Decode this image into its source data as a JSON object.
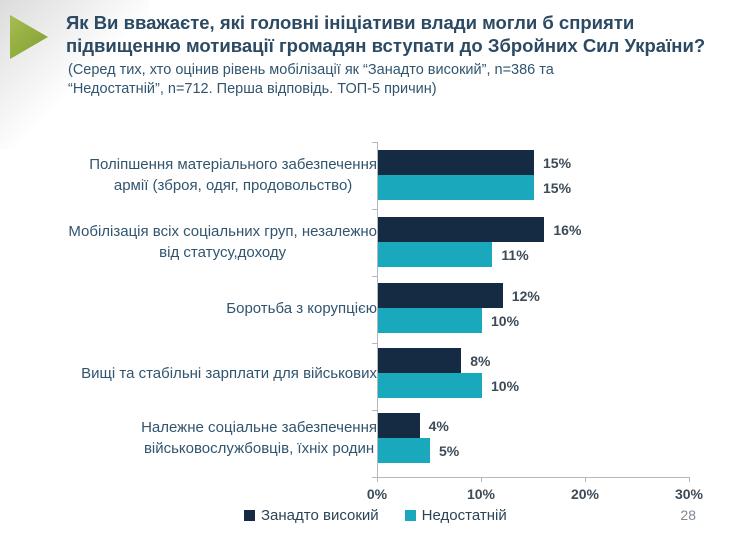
{
  "slide": {
    "page_number": "28"
  },
  "chart_data": {
    "type": "bar",
    "orientation": "horizontal",
    "title": "Як Ви вважаєте, які головні ініціативи влади могли б сприяти підвищенню мотивації громадян вступати до Збройних Сил України?",
    "subtitle": "(Серед тих, хто оцінив рівень мобілізації як “Занадто високий”, n=386 та “Недостатній”, n=712. Перша відповідь. ТОП-5 причин)",
    "xlabel": "",
    "ylabel": "",
    "xlim": [
      0,
      30
    ],
    "x_ticks": [
      "0%",
      "10%",
      "20%",
      "30%"
    ],
    "grid": false,
    "legend_position": "bottom",
    "categories": [
      "Поліпшення матеріального забезпечення армії (зброя, одяг, продовольство)",
      "Мобілізація всіх соціальних груп, незалежно від статусу,доходу",
      "Боротьба з корупцією",
      "Вищі та стабільні зарплати для військових",
      "Належне соціальне забезпечення військовослужбовців, їхніх родин"
    ],
    "category_lines": [
      [
        "Поліпшення матеріального забезпечення",
        "армії (зброя, одяг, продовольство)"
      ],
      [
        "Мобілізація всіх соціальних груп, незалежно",
        "від статусу,доходу"
      ],
      [
        "Боротьба з корупцією"
      ],
      [
        "Вищі та стабільні зарплати для військових"
      ],
      [
        "Належне соціальне забезпечення",
        "військовослужбовців, їхніх родин"
      ]
    ],
    "series": [
      {
        "name": "Занадто високий",
        "color": "#152b44",
        "values": [
          15,
          16,
          12,
          8,
          4
        ],
        "labels": [
          "15%",
          "16%",
          "12%",
          "8%",
          "4%"
        ]
      },
      {
        "name": "Недостатній",
        "color": "#19a8bc",
        "values": [
          15,
          11,
          10,
          10,
          5
        ],
        "labels": [
          "15%",
          "11%",
          "10%",
          "10%",
          "5%"
        ]
      }
    ],
    "accent_arrow_color": "#8ca83d"
  }
}
